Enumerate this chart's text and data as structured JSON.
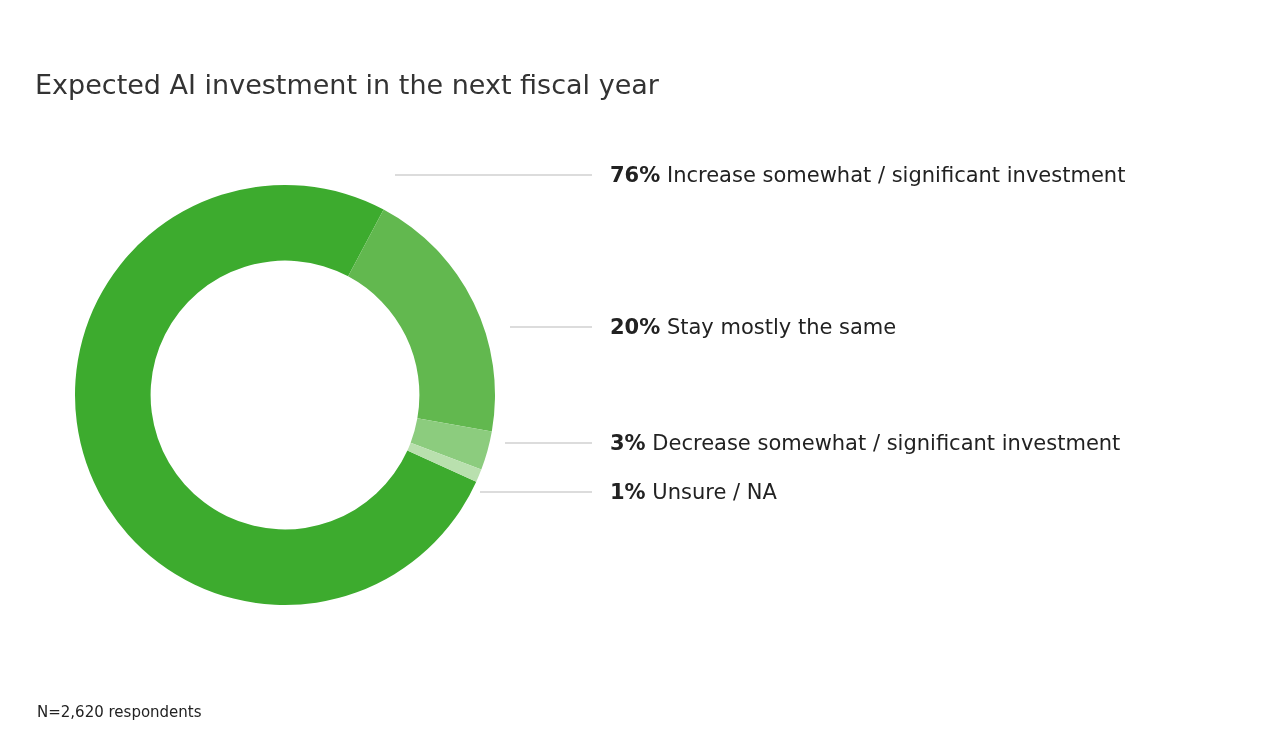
{
  "chart_data": {
    "type": "donut",
    "title": "Expected AI investment in the next fiscal year",
    "categories": [
      "Increase somewhat / significant investment",
      "Stay mostly the same",
      "Decrease somewhat / significant investment",
      "Unsure / NA"
    ],
    "values": [
      76,
      20,
      3,
      1
    ],
    "value_labels": [
      "76%",
      "20%",
      "3%",
      "1%"
    ],
    "colors": [
      "#3dab2e",
      "#62b84f",
      "#8ccc7e",
      "#b9e0ae"
    ],
    "annotations": [
      "N=2,620 respondents"
    ],
    "legend": false
  }
}
